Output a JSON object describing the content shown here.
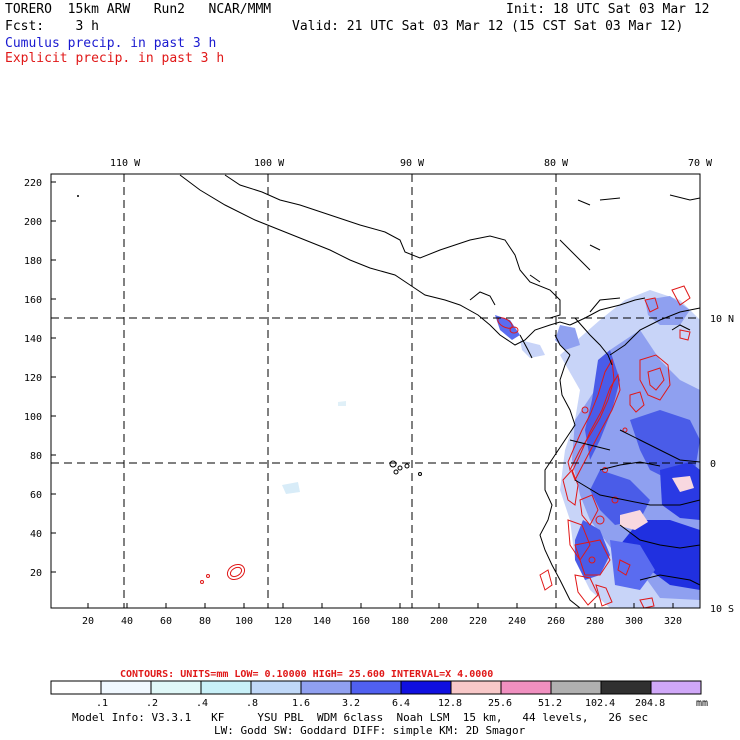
{
  "header": {
    "model": "TORERO  15km ARW   Run2   NCAR/MMM",
    "init": "Init: 18 UTC Sat 03 Mar 12",
    "fcst": "Fcst:    3 h",
    "valid": "Valid: 21 UTC Sat 03 Mar 12 (15 CST Sat 03 Mar 12)",
    "cumulus": "Cumulus precip. in past 3 h",
    "explicit": "Explicit precip. in past 3 h",
    "cumulus_color": "#1a1ad0",
    "explicit_color": "#e01818"
  },
  "map": {
    "top_lon_labels": [
      "110 W",
      "100 W",
      "90 W",
      "80 W",
      "70 W"
    ],
    "right_lat_labels": [
      "10 N",
      "0",
      "10 S"
    ],
    "y_ticks": [
      "220",
      "200",
      "180",
      "160",
      "140",
      "120",
      "100",
      "80",
      "60",
      "40",
      "20"
    ],
    "x_ticks": [
      "20",
      "40",
      "60",
      "80",
      "100",
      "120",
      "140",
      "160",
      "180",
      "200",
      "220",
      "240",
      "260",
      "280",
      "300",
      "320"
    ]
  },
  "footer": {
    "contours": "CONTOURS:  UNITS=mm  LOW= 0.10000     HIGH=  25.600     INTERVAL=X  4.0000",
    "scale_values": [
      ".1",
      ".2",
      ".4",
      ".8",
      "1.6",
      "3.2",
      "6.4",
      "12.8",
      "25.6",
      "51.2",
      "102.4",
      "204.8"
    ],
    "scale_unit": "mm",
    "scale_colors": [
      "#ffffff",
      "#f0f8ff",
      "#e0f8f8",
      "#c8f0f8",
      "#c0d8f8",
      "#90a0f0",
      "#5060f0",
      "#1010e0",
      "#f8c8c8",
      "#f090c0",
      "#b0b0b0",
      "#303030",
      "#d0a8f8"
    ],
    "model_info": "Model Info: V3.3.1   KF     YSU PBL  WDM 6class  Noah LSM  15 km,   44 levels,   26 sec",
    "model_info2": "LW: Godd SW: Goddard DIFF: simple KM: 2D Smagor"
  }
}
